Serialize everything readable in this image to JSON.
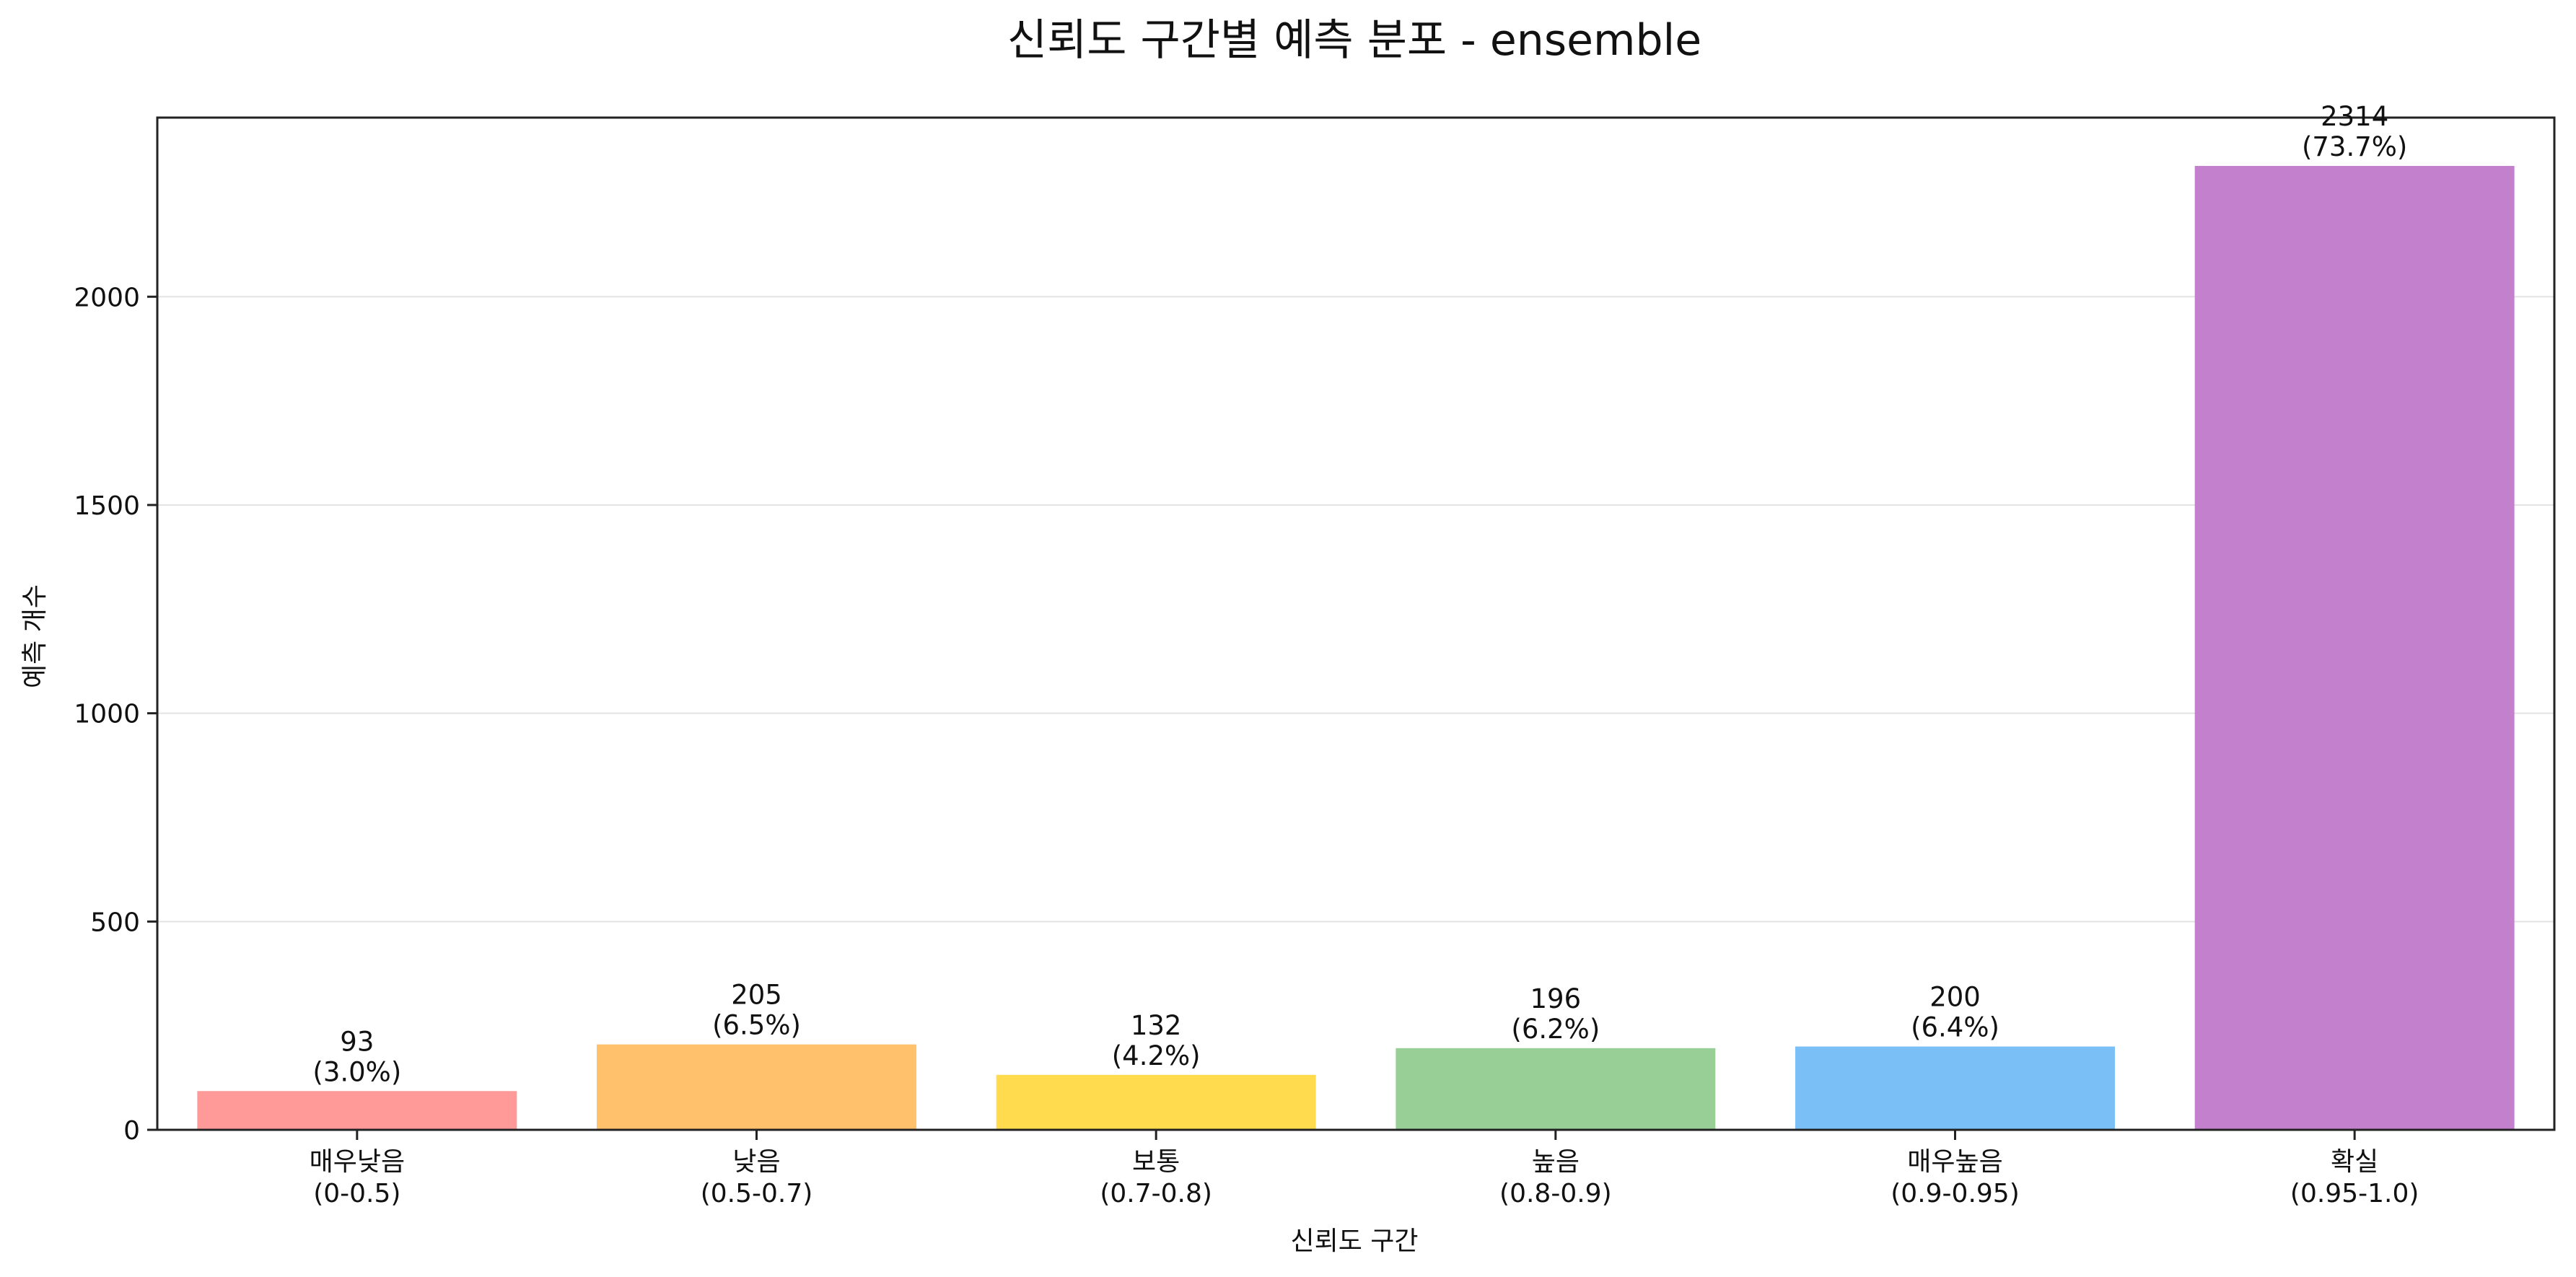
{
  "chart_data": {
    "type": "bar",
    "title": "신뢰도 구간별 예측 분포 - ensemble",
    "xlabel": "신뢰도 구간",
    "ylabel": "예측 개수",
    "categories": [
      [
        "매우낮음",
        "(0-0.5)"
      ],
      [
        "낮음",
        "(0.5-0.7)"
      ],
      [
        "보통",
        "(0.7-0.8)"
      ],
      [
        "높음",
        "(0.8-0.9)"
      ],
      [
        "매우높음",
        "(0.9-0.95)"
      ],
      [
        "확실",
        "(0.95-1.0)"
      ]
    ],
    "values": [
      93,
      205,
      132,
      196,
      200,
      2314
    ],
    "percent_labels": [
      "(3.0%)",
      "(6.5%)",
      "(4.2%)",
      "(6.2%)",
      "(6.4%)",
      "(73.7%)"
    ],
    "colors": [
      "#ff9a99",
      "#ffc16b",
      "#ffdb4d",
      "#97cf97",
      "#7bbff7",
      "#c380cd"
    ],
    "ylim": [
      0,
      2430
    ],
    "yticks": [
      0,
      500,
      1000,
      1500,
      2000
    ],
    "grid": "y-axis only"
  }
}
